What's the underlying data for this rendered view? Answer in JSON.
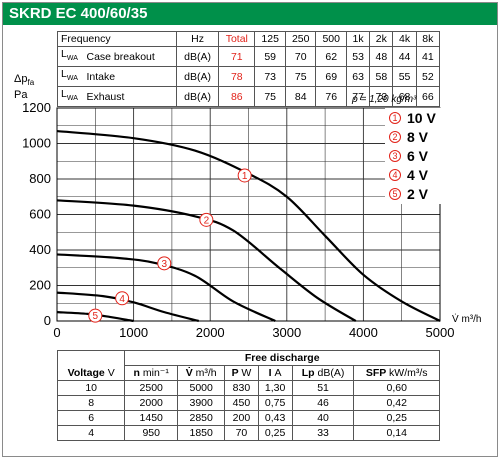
{
  "title": "SKRD EC 400/60/35",
  "spec_table": {
    "headers": [
      "Frequency",
      "Hz",
      "Total",
      "125",
      "250",
      "500",
      "1k",
      "2k",
      "4k",
      "8k"
    ],
    "rows": [
      {
        "label": "L",
        "sub": "WA",
        "name": "Case breakout",
        "unit": "dB(A)",
        "total": "71",
        "values": [
          "59",
          "70",
          "62",
          "53",
          "48",
          "44",
          "41"
        ]
      },
      {
        "label": "L",
        "sub": "WA",
        "name": "Intake",
        "unit": "dB(A)",
        "total": "78",
        "values": [
          "73",
          "75",
          "69",
          "63",
          "58",
          "55",
          "52"
        ]
      },
      {
        "label": "L",
        "sub": "WA",
        "name": "Exhaust",
        "unit": "dB(A)",
        "total": "86",
        "values": [
          "75",
          "84",
          "76",
          "77",
          "73",
          "68",
          "66"
        ]
      }
    ]
  },
  "chart_labels": {
    "y_title_line1": "Δp",
    "y_title_sub": "fa",
    "y_title_line2": "Pa",
    "x_title": "V̇ m³/h",
    "density": "ρ = 1,20 kg/m³"
  },
  "legend": [
    {
      "num": "1",
      "text": "10 V"
    },
    {
      "num": "2",
      "text": "8 V"
    },
    {
      "num": "3",
      "text": "6 V"
    },
    {
      "num": "4",
      "text": "4 V"
    },
    {
      "num": "5",
      "text": "2 V"
    }
  ],
  "perf_table": {
    "group_header": "Free discharge",
    "headers": [
      {
        "label": "Voltage",
        "unit": "V"
      },
      {
        "label": "n",
        "unit": "min⁻¹"
      },
      {
        "label": "V̇",
        "unit": "m³/h"
      },
      {
        "label": "P",
        "unit": "W"
      },
      {
        "label": "I",
        "unit": "A"
      },
      {
        "label": "Lp",
        "unit": "dB(A)"
      },
      {
        "label": "SFP",
        "unit": "kW/m³/s"
      }
    ],
    "rows": [
      [
        "10",
        "2500",
        "5000",
        "830",
        "1,30",
        "51",
        "0,60"
      ],
      [
        "8",
        "2000",
        "3900",
        "450",
        "0,75",
        "46",
        "0,42"
      ],
      [
        "6",
        "1450",
        "2850",
        "200",
        "0,43",
        "40",
        "0,25"
      ],
      [
        "4",
        "950",
        "1850",
        "70",
        "0,25",
        "33",
        "0,14"
      ]
    ]
  },
  "chart_data": {
    "type": "line",
    "title": "SKRD EC 400/60/35",
    "xlabel": "V̇ m³/h",
    "ylabel": "Δpfa Pa",
    "xlim": [
      0,
      5000
    ],
    "ylim": [
      0,
      1200
    ],
    "x_ticks": [
      "0",
      "1000",
      "2000",
      "3000",
      "4000",
      "5000"
    ],
    "y_ticks": [
      "0",
      "200",
      "400",
      "600",
      "800",
      "1000",
      "1200"
    ],
    "grid": true,
    "series": [
      {
        "name": "10 V",
        "marker": "1",
        "points": [
          [
            0,
            1070
          ],
          [
            1000,
            1030
          ],
          [
            1800,
            960
          ],
          [
            2500,
            830
          ],
          [
            3000,
            700
          ],
          [
            3500,
            480
          ],
          [
            4000,
            260
          ],
          [
            4500,
            110
          ],
          [
            5000,
            0
          ]
        ]
      },
      {
        "name": "8 V",
        "marker": "2",
        "points": [
          [
            0,
            680
          ],
          [
            1000,
            650
          ],
          [
            1800,
            590
          ],
          [
            2300,
            510
          ],
          [
            2900,
            300
          ],
          [
            3400,
            130
          ],
          [
            3900,
            0
          ]
        ]
      },
      {
        "name": "6 V",
        "marker": "3",
        "points": [
          [
            0,
            375
          ],
          [
            800,
            355
          ],
          [
            1300,
            325
          ],
          [
            1800,
            255
          ],
          [
            2300,
            110
          ],
          [
            2850,
            0
          ]
        ]
      },
      {
        "name": "4 V",
        "marker": "4",
        "points": [
          [
            0,
            160
          ],
          [
            600,
            140
          ],
          [
            1000,
            105
          ],
          [
            1400,
            50
          ],
          [
            1850,
            0
          ]
        ]
      },
      {
        "name": "2 V",
        "marker": "5",
        "points": [
          [
            0,
            50
          ],
          [
            400,
            40
          ],
          [
            700,
            22
          ],
          [
            1000,
            0
          ]
        ]
      }
    ],
    "curve_markers": [
      {
        "marker": "1",
        "x": 2450,
        "y": 820
      },
      {
        "marker": "2",
        "x": 1950,
        "y": 570
      },
      {
        "marker": "3",
        "x": 1400,
        "y": 325
      },
      {
        "marker": "4",
        "x": 850,
        "y": 128
      },
      {
        "marker": "5",
        "x": 500,
        "y": 30
      }
    ]
  }
}
